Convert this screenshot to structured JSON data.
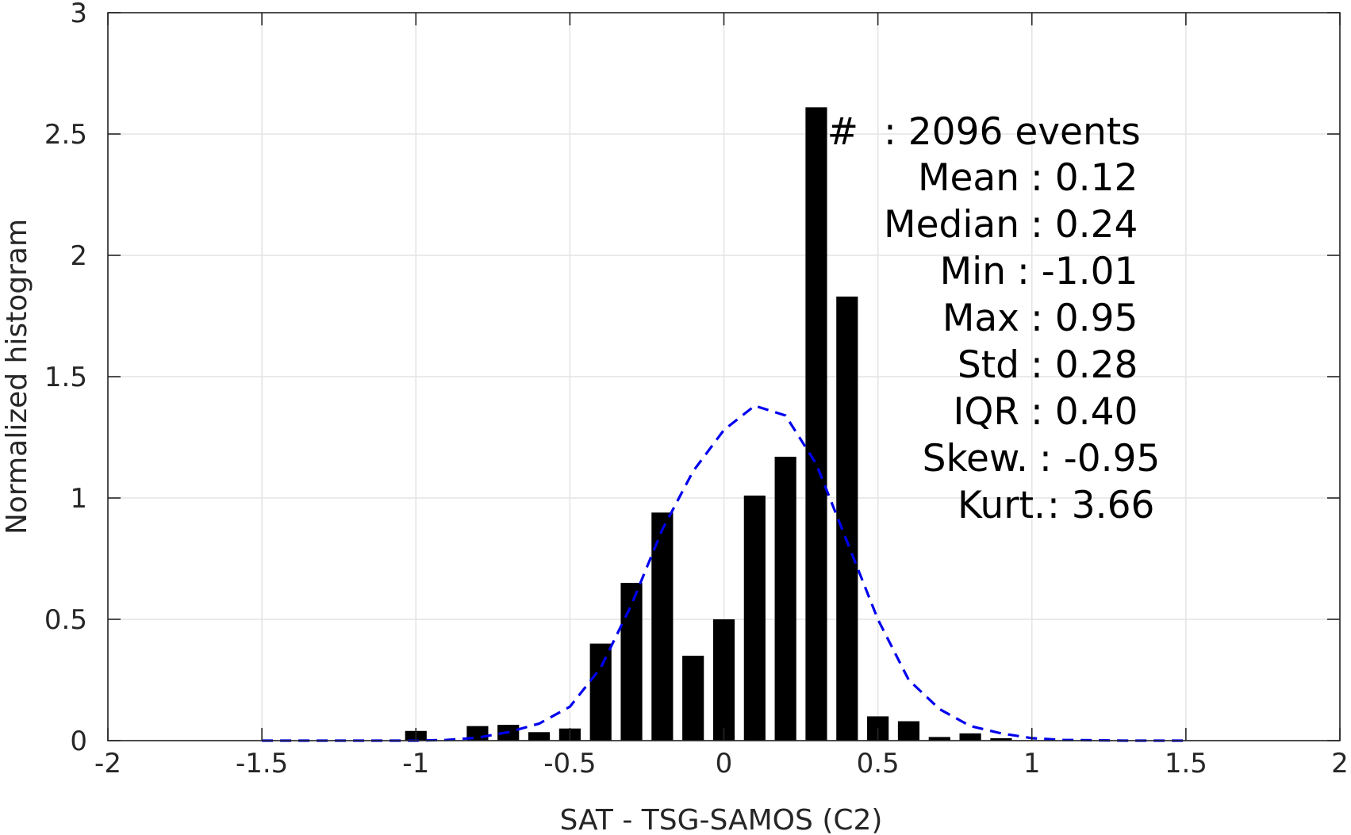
{
  "chart_data": {
    "type": "bar",
    "xlabel": "SAT - TSG-SAMOS (C2)",
    "ylabel": "Normalized histogram",
    "xlim": [
      -2,
      2
    ],
    "ylim": [
      0,
      3
    ],
    "xticks": [
      -2,
      -1.5,
      -1,
      -0.5,
      0,
      0.5,
      1,
      1.5,
      2
    ],
    "xtick_labels": [
      "-2",
      "-1.5",
      "-1",
      "-0.5",
      "0",
      "0.5",
      "1",
      "1.5",
      "2"
    ],
    "yticks": [
      0,
      0.5,
      1,
      1.5,
      2,
      2.5,
      3
    ],
    "ytick_labels": [
      "0",
      "0.5",
      "1",
      "1.5",
      "2",
      "2.5",
      "3"
    ],
    "grid": true,
    "bar_width": 0.07,
    "bars": {
      "x": [
        -1.0,
        -0.8,
        -0.7,
        -0.6,
        -0.5,
        -0.4,
        -0.3,
        -0.2,
        -0.1,
        0.0,
        0.1,
        0.2,
        0.3,
        0.4,
        0.5,
        0.6,
        0.7,
        0.8,
        0.9
      ],
      "values": [
        0.04,
        0.06,
        0.065,
        0.035,
        0.05,
        0.4,
        0.65,
        0.94,
        0.35,
        0.5,
        1.01,
        1.17,
        2.61,
        1.83,
        0.1,
        0.08,
        0.015,
        0.03,
        0.01
      ],
      "color": "#000000"
    },
    "fit_curve": {
      "style": "dashed",
      "color": "#0000ee",
      "x": [
        -1.5,
        -1.3,
        -1.1,
        -1.0,
        -0.9,
        -0.8,
        -0.7,
        -0.6,
        -0.5,
        -0.4,
        -0.3,
        -0.2,
        -0.1,
        0.0,
        0.1,
        0.2,
        0.3,
        0.4,
        0.5,
        0.6,
        0.7,
        0.8,
        0.9,
        1.0,
        1.1,
        1.3,
        1.5
      ],
      "y": [
        0.0,
        0.0,
        0.0,
        0.0,
        0.003,
        0.012,
        0.035,
        0.07,
        0.14,
        0.3,
        0.56,
        0.87,
        1.11,
        1.28,
        1.38,
        1.34,
        1.14,
        0.82,
        0.5,
        0.25,
        0.13,
        0.06,
        0.03,
        0.01,
        0.003,
        0.0,
        0.0
      ]
    },
    "stats": [
      {
        "label": "#",
        "value": ": 2096 events"
      },
      {
        "label": "Mean",
        "value": ": 0.12"
      },
      {
        "label": "Median",
        "value": ": 0.24"
      },
      {
        "label": "Min",
        "value": ": -1.01"
      },
      {
        "label": "Max",
        "value": ": 0.95"
      },
      {
        "label": "Std",
        "value": ": 0.28"
      },
      {
        "label": "IQR",
        "value": ": 0.40"
      },
      {
        "label": "Skew.",
        "value": ": -0.95"
      },
      {
        "label": "Kurt.",
        "value": ": 3.66"
      }
    ]
  }
}
